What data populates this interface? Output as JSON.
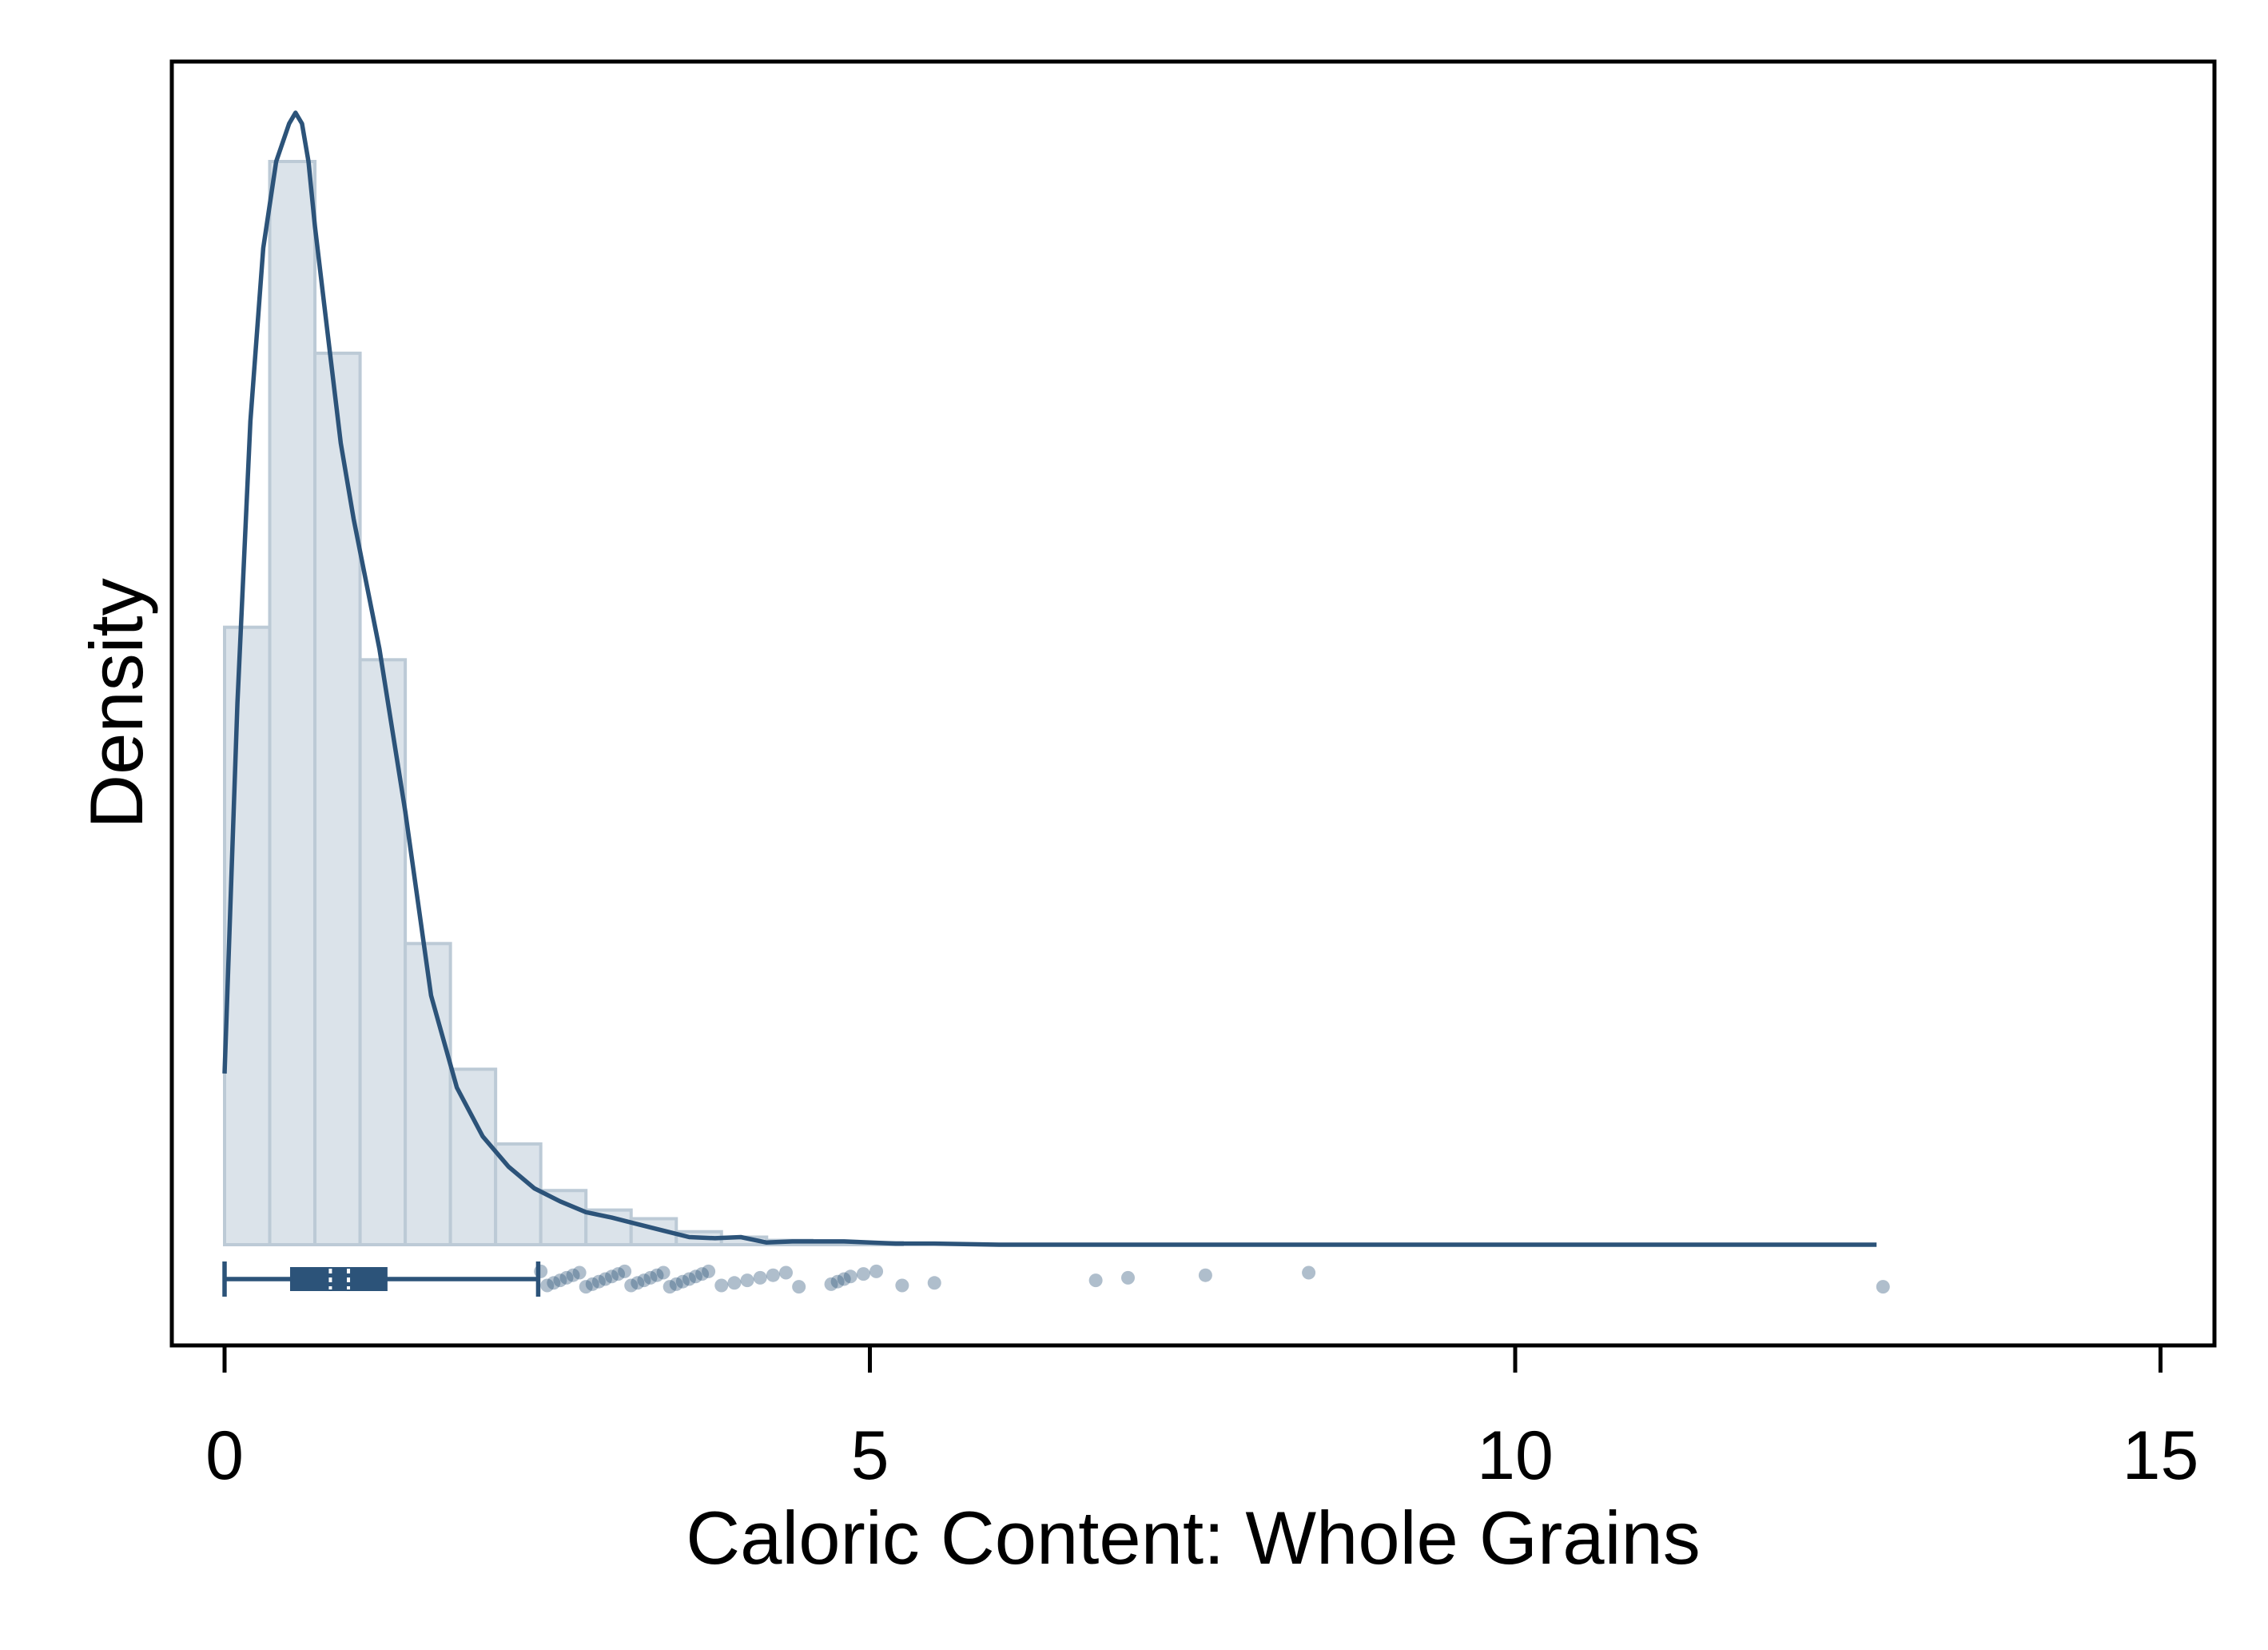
{
  "chart_data": {
    "type": "histogram",
    "xlabel": "Caloric Content: Whole Grains",
    "ylabel": "Density",
    "xlim": [
      -0.4,
      15.4
    ],
    "x_ticks": [
      {
        "value": 0,
        "label": "0"
      },
      {
        "value": 5,
        "label": "5"
      },
      {
        "value": 10,
        "label": "10"
      },
      {
        "value": 15,
        "label": "15"
      }
    ],
    "y_ticks_shown": false,
    "grid": false,
    "colors": {
      "bar_fill": "#dbe3ea",
      "bar_stroke": "#bccad6",
      "line": "#2c5379",
      "points": "#2c5379",
      "frame": "#000000"
    },
    "histogram": {
      "bin_width": 0.35,
      "bins": [
        {
          "x0": 0.0,
          "x1": 0.35,
          "density": 0.57
        },
        {
          "x0": 0.35,
          "x1": 0.7,
          "density": 1.0
        },
        {
          "x0": 0.7,
          "x1": 1.05,
          "density": 0.823
        },
        {
          "x0": 1.05,
          "x1": 1.4,
          "density": 0.54
        },
        {
          "x0": 1.4,
          "x1": 1.75,
          "density": 0.278
        },
        {
          "x0": 1.75,
          "x1": 2.1,
          "density": 0.162
        },
        {
          "x0": 2.1,
          "x1": 2.45,
          "density": 0.093
        },
        {
          "x0": 2.45,
          "x1": 2.8,
          "density": 0.05
        },
        {
          "x0": 2.8,
          "x1": 3.15,
          "density": 0.032
        },
        {
          "x0": 3.15,
          "x1": 3.5,
          "density": 0.024
        },
        {
          "x0": 3.5,
          "x1": 3.85,
          "density": 0.012
        },
        {
          "x0": 3.85,
          "x1": 4.2,
          "density": 0.007
        },
        {
          "x0": 4.2,
          "x1": 4.55,
          "density": 0.004
        },
        {
          "x0": 4.55,
          "x1": 4.9,
          "density": 0.003
        },
        {
          "x0": 4.9,
          "x1": 5.25,
          "density": 0.002
        }
      ]
    },
    "kde": {
      "x": [
        0.0,
        0.1,
        0.2,
        0.3,
        0.4,
        0.5,
        0.55,
        0.6,
        0.65,
        0.7,
        0.8,
        0.9,
        1.0,
        1.2,
        1.4,
        1.6,
        1.8,
        2.0,
        2.2,
        2.4,
        2.6,
        2.8,
        3.0,
        3.2,
        3.4,
        3.6,
        3.8,
        4.0,
        4.2,
        4.4,
        4.6,
        4.8,
        5.0,
        5.2,
        5.5,
        6.0,
        7.0,
        8.0,
        9.0,
        10.0,
        11.0,
        12.0,
        12.8
      ],
      "y": [
        0.158,
        0.5,
        0.76,
        0.92,
        1.0,
        1.035,
        1.045,
        1.035,
        1.0,
        0.94,
        0.84,
        0.74,
        0.67,
        0.55,
        0.4,
        0.23,
        0.145,
        0.1,
        0.072,
        0.052,
        0.04,
        0.03,
        0.025,
        0.019,
        0.013,
        0.007,
        0.006,
        0.007,
        0.002,
        0.003,
        0.003,
        0.003,
        0.002,
        0.001,
        0.001,
        0.0,
        0.0,
        0.0,
        0.0,
        0.0,
        0.0,
        0.0,
        0.0
      ]
    },
    "boxplot": {
      "min": 0.0,
      "q1": 0.52,
      "median": 0.82,
      "mean": 0.96,
      "q3": 1.25,
      "upper_whisker": 2.43
    },
    "outliers": [
      2.45,
      2.5,
      2.55,
      2.6,
      2.65,
      2.7,
      2.75,
      2.8,
      2.85,
      2.9,
      2.95,
      3.0,
      3.05,
      3.1,
      3.15,
      3.2,
      3.25,
      3.3,
      3.35,
      3.4,
      3.45,
      3.5,
      3.55,
      3.6,
      3.65,
      3.7,
      3.75,
      3.85,
      3.95,
      4.05,
      4.15,
      4.25,
      4.35,
      4.45,
      4.7,
      4.75,
      4.8,
      4.85,
      4.95,
      5.05,
      5.25,
      5.5,
      6.75,
      7.0,
      7.6,
      8.4,
      12.85
    ]
  }
}
